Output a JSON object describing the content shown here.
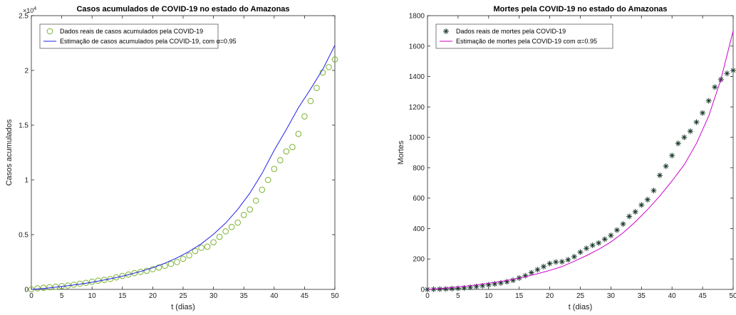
{
  "chart_data": [
    {
      "type": "scatter",
      "title": "Casos acumulados de COVID-19 no estado do Amazonas",
      "xlabel": "t (dias)",
      "ylabel": "Casos acumulados",
      "xlim": [
        0,
        50
      ],
      "ylim": [
        0,
        25000
      ],
      "x_ticks": [
        0,
        5,
        10,
        15,
        20,
        25,
        30,
        35,
        40,
        45,
        50
      ],
      "y_ticks": [
        0,
        5000,
        10000,
        15000,
        20000,
        25000
      ],
      "y_tick_labels": [
        "0",
        "0.5",
        "1",
        "1.5",
        "2",
        "2.5"
      ],
      "y_exponent": {
        "base": "×10",
        "power": "4"
      },
      "legend_position": "top-left",
      "grid": false,
      "series": [
        {
          "name": "Dados reais de casos acumulados pela COVID-19",
          "kind": "markers",
          "marker": "circle",
          "color": "#7ab32e",
          "x": [
            0,
            1,
            2,
            3,
            4,
            5,
            6,
            7,
            8,
            9,
            10,
            11,
            12,
            13,
            14,
            15,
            16,
            17,
            18,
            19,
            20,
            21,
            22,
            23,
            24,
            25,
            26,
            27,
            28,
            29,
            30,
            31,
            32,
            33,
            34,
            35,
            36,
            37,
            38,
            39,
            40,
            41,
            42,
            43,
            44,
            45,
            46,
            47,
            48,
            49,
            50
          ],
          "y": [
            0,
            100,
            150,
            200,
            250,
            300,
            350,
            430,
            520,
            600,
            700,
            800,
            870,
            950,
            1100,
            1230,
            1360,
            1490,
            1600,
            1700,
            1850,
            2000,
            2150,
            2330,
            2500,
            2800,
            3100,
            3500,
            3800,
            3900,
            4300,
            4800,
            5300,
            5700,
            6100,
            6800,
            7300,
            8100,
            9100,
            10000,
            11000,
            11800,
            12600,
            13000,
            14200,
            15800,
            17200,
            18400,
            19800,
            20300,
            21000
          ]
        },
        {
          "name": "Estimação de casos acumulados pela COVID-19, com α=0.95",
          "kind": "line",
          "color": "#2222ee",
          "x": [
            0,
            2,
            4,
            6,
            8,
            10,
            12,
            14,
            16,
            18,
            20,
            22,
            24,
            26,
            28,
            30,
            32,
            34,
            36,
            38,
            40,
            42,
            44,
            46,
            48,
            50
          ],
          "y": [
            0,
            80,
            200,
            330,
            480,
            650,
            860,
            1080,
            1340,
            1640,
            1980,
            2390,
            2880,
            3470,
            4170,
            5030,
            6050,
            7310,
            8790,
            10600,
            12700,
            14600,
            16600,
            18300,
            20100,
            22300
          ]
        }
      ]
    },
    {
      "type": "scatter",
      "title": "Mortes pela COVID-19 no estado do Amazonas",
      "xlabel": "t (dias)",
      "ylabel": "Mortes",
      "xlim": [
        0,
        50
      ],
      "ylim": [
        0,
        1800
      ],
      "x_ticks": [
        0,
        5,
        10,
        15,
        20,
        25,
        30,
        35,
        40,
        45,
        50
      ],
      "y_ticks": [
        0,
        200,
        400,
        600,
        800,
        1000,
        1200,
        1400,
        1600,
        1800
      ],
      "y_tick_labels": [
        "0",
        "200",
        "400",
        "600",
        "800",
        "1000",
        "1200",
        "1400",
        "1600",
        "1800"
      ],
      "legend_position": "top-left",
      "grid": false,
      "series": [
        {
          "name": "Dados reais de mortes pela COVID-19",
          "kind": "markers",
          "marker": "asterisk",
          "color": "#1a3a2a",
          "x": [
            0,
            1,
            2,
            3,
            4,
            5,
            6,
            7,
            8,
            9,
            10,
            11,
            12,
            13,
            14,
            15,
            16,
            17,
            18,
            19,
            20,
            21,
            22,
            23,
            24,
            25,
            26,
            27,
            28,
            29,
            30,
            31,
            32,
            33,
            34,
            35,
            36,
            37,
            38,
            39,
            40,
            41,
            42,
            43,
            44,
            45,
            46,
            47,
            48,
            49,
            50
          ],
          "y": [
            0,
            1,
            2,
            3,
            5,
            7,
            10,
            14,
            19,
            24,
            30,
            36,
            42,
            50,
            60,
            75,
            90,
            110,
            130,
            150,
            170,
            180,
            182,
            195,
            215,
            245,
            270,
            290,
            305,
            330,
            355,
            390,
            430,
            480,
            510,
            555,
            590,
            650,
            750,
            810,
            880,
            960,
            1000,
            1040,
            1100,
            1160,
            1240,
            1330,
            1380,
            1420,
            1440
          ]
        },
        {
          "name": "Estimação de mortes pela COVID-19 com α=0.95",
          "kind": "line",
          "color": "#cc00cc",
          "x": [
            0,
            2,
            4,
            6,
            8,
            10,
            12,
            14,
            16,
            18,
            20,
            22,
            24,
            26,
            28,
            30,
            32,
            34,
            36,
            38,
            40,
            42,
            44,
            46,
            48,
            50
          ],
          "y": [
            0,
            5,
            12,
            20,
            29,
            40,
            52,
            66,
            83,
            103,
            125,
            150,
            185,
            222,
            263,
            312,
            372,
            444,
            525,
            614,
            713,
            820,
            960,
            1140,
            1380,
            1700
          ]
        }
      ]
    }
  ]
}
